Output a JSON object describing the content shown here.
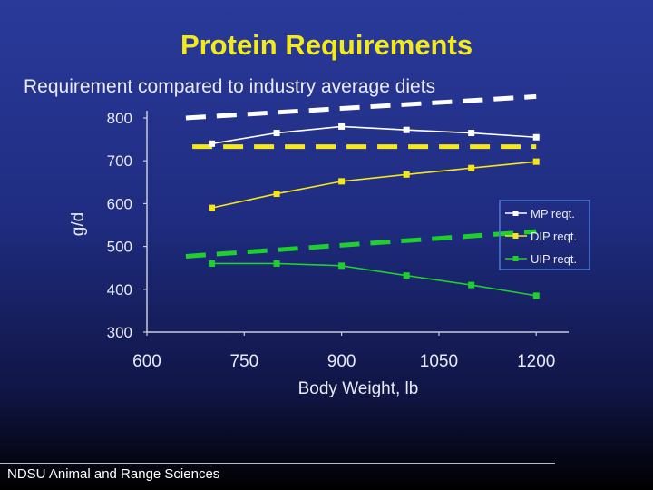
{
  "slide": {
    "title": "Protein Requirements",
    "subtitle": "Requirement compared to industry average diets",
    "footer": "NDSU Animal and Range Sciences"
  },
  "colors": {
    "title": "#f2ea1c",
    "mp": "#ffffff",
    "dip": "#f6e61a",
    "uip": "#1ecf2e",
    "axis": "#c8ccd8",
    "legend_border": "#4a7ad6"
  },
  "chart_data": {
    "type": "line",
    "title": "",
    "xlabel": "Body Weight, lb",
    "ylabel": "g/d",
    "xlim": [
      600,
      1250
    ],
    "ylim": [
      300,
      800
    ],
    "x_ticks": [
      600,
      750,
      900,
      1050,
      1200
    ],
    "y_ticks": [
      300,
      400,
      500,
      600,
      700,
      800
    ],
    "x": [
      700,
      800,
      900,
      1000,
      1100,
      1200
    ],
    "series": [
      {
        "name": "MP reqt.",
        "color": "#ffffff",
        "values": [
          740,
          765,
          780,
          772,
          765,
          755
        ]
      },
      {
        "name": "DIP reqt.",
        "color": "#f6e61a",
        "values": [
          590,
          623,
          652,
          668,
          683,
          698
        ]
      },
      {
        "name": "UIP reqt.",
        "color": "#1ecf2e",
        "values": [
          460,
          460,
          455,
          432,
          410,
          385
        ]
      }
    ],
    "industry_average_lines": [
      {
        "name": "MP industry average",
        "color": "#ffffff",
        "x": [
          660,
          1200
        ],
        "values": [
          800,
          850
        ]
      },
      {
        "name": "DIP industry average",
        "color": "#f6e61a",
        "x": [
          670,
          1200
        ],
        "values": [
          733,
          733
        ]
      },
      {
        "name": "UIP industry average",
        "color": "#1ecf2e",
        "x": [
          660,
          1200
        ],
        "values": [
          477,
          535
        ]
      }
    ],
    "legend_position": "right"
  }
}
